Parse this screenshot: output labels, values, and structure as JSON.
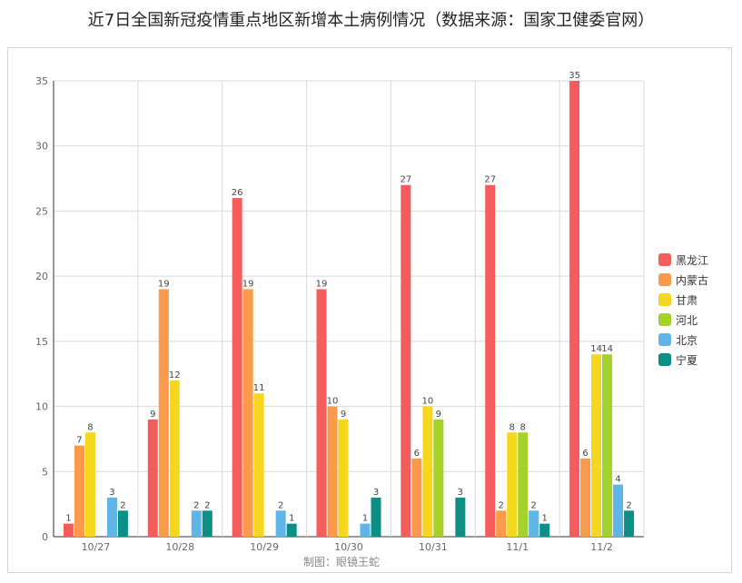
{
  "chart_data": {
    "type": "bar",
    "title": "近7日全国新冠疫情重点地区新增本土病例情况（数据来源：国家卫健委官网）",
    "credit": "制图：眼镜王蛇",
    "categories": [
      "10/27",
      "10/28",
      "10/29",
      "10/30",
      "10/31",
      "11/1",
      "11/2"
    ],
    "ylim": [
      0,
      35
    ],
    "yticks": [
      0,
      5,
      10,
      15,
      20,
      25,
      30,
      35
    ],
    "grid": true,
    "legend_position": "right",
    "series": [
      {
        "name": "黑龙江",
        "color": "#f55d5d",
        "values": [
          1,
          9,
          26,
          19,
          27,
          27,
          35
        ]
      },
      {
        "name": "内蒙古",
        "color": "#fb9a4a",
        "values": [
          7,
          19,
          19,
          10,
          6,
          2,
          6
        ]
      },
      {
        "name": "甘肃",
        "color": "#f7d71e",
        "values": [
          8,
          12,
          11,
          9,
          10,
          8,
          14
        ]
      },
      {
        "name": "河北",
        "color": "#a4d12a",
        "values": [
          null,
          null,
          null,
          null,
          9,
          8,
          14
        ]
      },
      {
        "name": "北京",
        "color": "#5fb4e8",
        "values": [
          3,
          2,
          2,
          1,
          null,
          2,
          4
        ]
      },
      {
        "name": "宁夏",
        "color": "#0b8f86",
        "values": [
          2,
          2,
          1,
          3,
          3,
          1,
          2
        ]
      }
    ]
  }
}
